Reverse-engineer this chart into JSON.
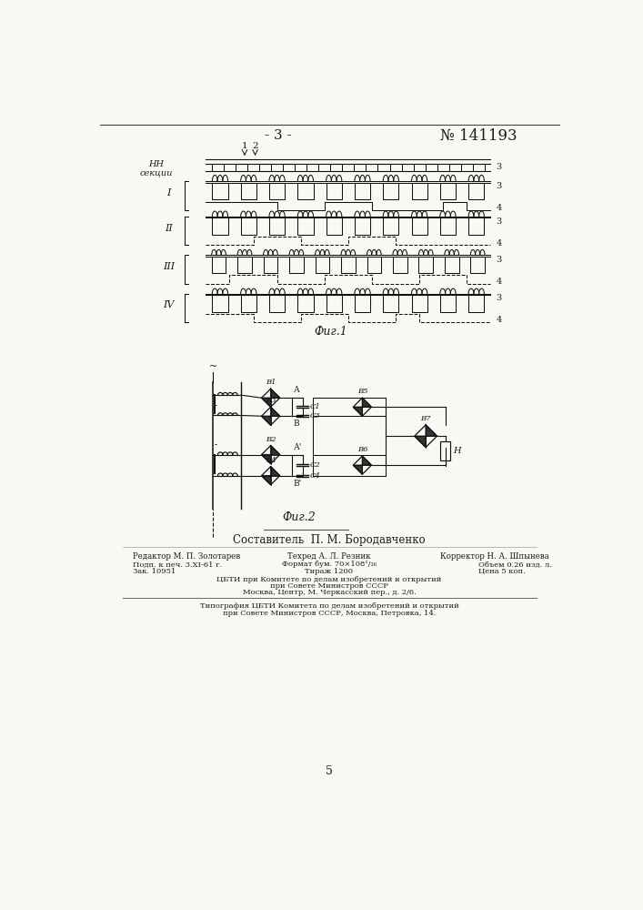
{
  "page_number": "- 3 -",
  "patent_number": "№ 141193",
  "fig1_caption": "Фиг.1",
  "fig2_caption": "Фиг.2",
  "bg_color": "#f8f8f5",
  "text_color": "#1a1a1a",
  "section_labels": [
    "I",
    "II",
    "III",
    "IV"
  ],
  "author_line": "Составитель  П. М. Бородавченко",
  "editor_line": "Редактор М. П. Золотарев",
  "tech_line": "Техред А. Л. Резник",
  "corrector_line": "Корректор Н. А. Шпынева",
  "podp_line": "Подп. к печ. 3.ХI-61 г.",
  "format_line": "Формат бум. 70×108¹/₁₆",
  "tirazh_line": "Тираж 1200",
  "obem_line": "Объем 0.26 изд. л.",
  "cena_line": "Цена 5 коп.",
  "zak_line": "Зак. 10951",
  "tsbti_line1": "ЦБТИ при Комитете по делам изобретений и открытий",
  "tsbti_line2": "при Совете Министров СССР",
  "tsbti_line3": "Москва, Центр, М. Черкасский пер., д. 2/6.",
  "tipogr_line1": "Типография ЦБТИ Комитета по делам изобретений и открытий",
  "tipogr_line2": "при Совете Министров СССР, Москва, Петровка, 14.",
  "page_num_bottom": "5"
}
